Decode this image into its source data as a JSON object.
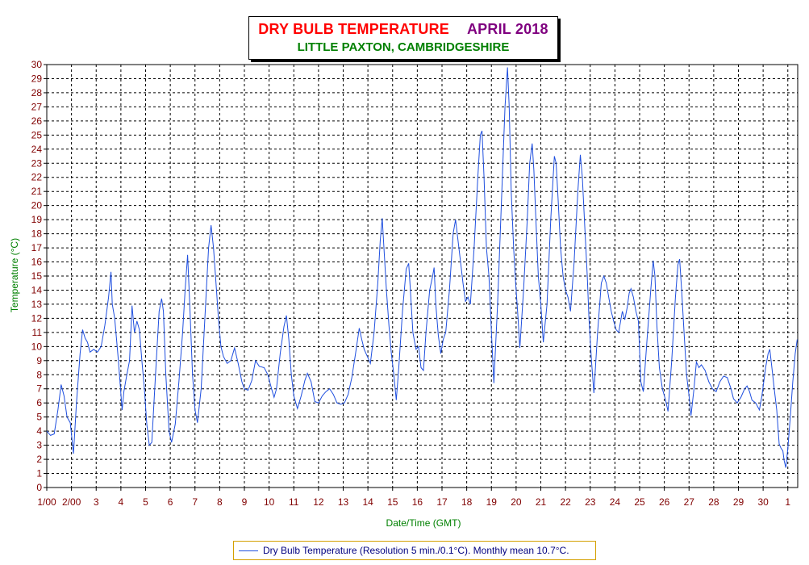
{
  "title": {
    "main": "DRY BULB TEMPERATURE",
    "period": "APRIL 2018",
    "location": "LITTLE PAXTON, CAMBRIDGESHIRE"
  },
  "legend": {
    "label": "Dry Bulb Temperature (Resolution 5 min./0.1°C). Monthly mean 10.7°C."
  },
  "colors": {
    "line": "#1f4fdf",
    "tick_labels": "#800000",
    "axis_titles": "#008000",
    "title_main": "#ff0000",
    "title_period": "#7f007f",
    "title_location": "#008000",
    "legend_border": "#d4a000"
  },
  "chart_data": {
    "type": "line",
    "xlabel": "Date/Time (GMT)",
    "ylabel": "Temperature (°C)",
    "ylim": [
      0,
      30
    ],
    "yticks": [
      0,
      1,
      2,
      3,
      4,
      5,
      6,
      7,
      8,
      9,
      10,
      11,
      12,
      13,
      14,
      15,
      16,
      17,
      18,
      19,
      20,
      21,
      22,
      23,
      24,
      25,
      26,
      27,
      28,
      29,
      30
    ],
    "xlim": [
      1,
      31.4
    ],
    "x_unit": "day of April 2018",
    "xticks": [
      {
        "x": 1,
        "label": "1/00"
      },
      {
        "x": 2,
        "label": "2/00"
      },
      {
        "x": 3,
        "label": "3"
      },
      {
        "x": 4,
        "label": "4"
      },
      {
        "x": 5,
        "label": "5"
      },
      {
        "x": 6,
        "label": "6"
      },
      {
        "x": 7,
        "label": "7"
      },
      {
        "x": 8,
        "label": "8"
      },
      {
        "x": 9,
        "label": "9"
      },
      {
        "x": 10,
        "label": "10"
      },
      {
        "x": 11,
        "label": "11"
      },
      {
        "x": 12,
        "label": "12"
      },
      {
        "x": 13,
        "label": "13"
      },
      {
        "x": 14,
        "label": "14"
      },
      {
        "x": 15,
        "label": "15"
      },
      {
        "x": 16,
        "label": "16"
      },
      {
        "x": 17,
        "label": "17"
      },
      {
        "x": 18,
        "label": "18"
      },
      {
        "x": 19,
        "label": "19"
      },
      {
        "x": 20,
        "label": "20"
      },
      {
        "x": 21,
        "label": "21"
      },
      {
        "x": 22,
        "label": "22"
      },
      {
        "x": 23,
        "label": "23"
      },
      {
        "x": 24,
        "label": "24"
      },
      {
        "x": 25,
        "label": "25"
      },
      {
        "x": 26,
        "label": "26"
      },
      {
        "x": 27,
        "label": "27"
      },
      {
        "x": 28,
        "label": "28"
      },
      {
        "x": 29,
        "label": "29"
      },
      {
        "x": 30,
        "label": "30"
      },
      {
        "x": 31,
        "label": "1"
      }
    ],
    "grid": true,
    "series": [
      {
        "name": "Dry Bulb Temperature (Resolution 5 min./0.1°C). Monthly mean 10.7°C.",
        "points": [
          [
            1.0,
            4.0
          ],
          [
            1.15,
            3.7
          ],
          [
            1.3,
            3.8
          ],
          [
            1.45,
            5.5
          ],
          [
            1.58,
            7.3
          ],
          [
            1.7,
            6.5
          ],
          [
            1.82,
            5.0
          ],
          [
            1.95,
            4.6
          ],
          [
            2.08,
            2.4
          ],
          [
            2.2,
            6.0
          ],
          [
            2.35,
            9.5
          ],
          [
            2.45,
            11.2
          ],
          [
            2.55,
            10.6
          ],
          [
            2.65,
            10.3
          ],
          [
            2.75,
            9.6
          ],
          [
            2.9,
            9.8
          ],
          [
            3.05,
            9.6
          ],
          [
            3.2,
            10.0
          ],
          [
            3.35,
            11.5
          ],
          [
            3.5,
            13.5
          ],
          [
            3.6,
            15.3
          ],
          [
            3.65,
            13.0
          ],
          [
            3.75,
            12.0
          ],
          [
            3.9,
            9.0
          ],
          [
            4.05,
            5.5
          ],
          [
            4.12,
            6.8
          ],
          [
            4.22,
            7.8
          ],
          [
            4.35,
            9.0
          ],
          [
            4.45,
            12.9
          ],
          [
            4.55,
            11.0
          ],
          [
            4.65,
            11.8
          ],
          [
            4.75,
            11.2
          ],
          [
            4.85,
            9.0
          ],
          [
            4.95,
            7.0
          ],
          [
            5.05,
            4.5
          ],
          [
            5.15,
            3.0
          ],
          [
            5.25,
            3.2
          ],
          [
            5.4,
            8.0
          ],
          [
            5.55,
            12.5
          ],
          [
            5.65,
            13.4
          ],
          [
            5.72,
            12.5
          ],
          [
            5.82,
            8.0
          ],
          [
            5.95,
            4.0
          ],
          [
            6.05,
            3.2
          ],
          [
            6.2,
            4.5
          ],
          [
            6.35,
            7.5
          ],
          [
            6.5,
            11.0
          ],
          [
            6.6,
            14.0
          ],
          [
            6.7,
            16.5
          ],
          [
            6.8,
            12.5
          ],
          [
            6.9,
            8.0
          ],
          [
            7.0,
            5.5
          ],
          [
            7.1,
            4.6
          ],
          [
            7.25,
            7.0
          ],
          [
            7.4,
            12.0
          ],
          [
            7.55,
            17.0
          ],
          [
            7.65,
            18.6
          ],
          [
            7.75,
            17.0
          ],
          [
            7.85,
            14.5
          ],
          [
            7.95,
            12.0
          ],
          [
            8.05,
            10.0
          ],
          [
            8.15,
            9.3
          ],
          [
            8.3,
            8.8
          ],
          [
            8.45,
            9.0
          ],
          [
            8.6,
            9.9
          ],
          [
            8.75,
            8.8
          ],
          [
            8.9,
            7.5
          ],
          [
            9.0,
            7.0
          ],
          [
            9.15,
            6.9
          ],
          [
            9.3,
            7.6
          ],
          [
            9.45,
            9.0
          ],
          [
            9.6,
            8.6
          ],
          [
            9.8,
            8.5
          ],
          [
            9.95,
            8.0
          ],
          [
            10.1,
            7.0
          ],
          [
            10.2,
            6.4
          ],
          [
            10.3,
            7.0
          ],
          [
            10.45,
            9.5
          ],
          [
            10.6,
            11.4
          ],
          [
            10.7,
            12.2
          ],
          [
            10.8,
            10.5
          ],
          [
            10.9,
            8.0
          ],
          [
            11.0,
            6.5
          ],
          [
            11.15,
            5.6
          ],
          [
            11.3,
            6.5
          ],
          [
            11.45,
            7.6
          ],
          [
            11.55,
            8.1
          ],
          [
            11.7,
            7.5
          ],
          [
            11.85,
            6.1
          ],
          [
            12.0,
            6.0
          ],
          [
            12.15,
            6.5
          ],
          [
            12.3,
            6.8
          ],
          [
            12.45,
            7.0
          ],
          [
            12.6,
            6.6
          ],
          [
            12.75,
            6.0
          ],
          [
            12.9,
            5.9
          ],
          [
            13.05,
            6.0
          ],
          [
            13.2,
            6.6
          ],
          [
            13.35,
            7.8
          ],
          [
            13.5,
            9.5
          ],
          [
            13.65,
            11.3
          ],
          [
            13.75,
            10.5
          ],
          [
            13.85,
            9.8
          ],
          [
            13.95,
            9.4
          ],
          [
            14.1,
            8.8
          ],
          [
            14.25,
            11.0
          ],
          [
            14.4,
            14.5
          ],
          [
            14.5,
            17.5
          ],
          [
            14.58,
            19.1
          ],
          [
            14.65,
            17.0
          ],
          [
            14.75,
            14.0
          ],
          [
            14.85,
            11.5
          ],
          [
            14.95,
            9.5
          ],
          [
            15.05,
            8.0
          ],
          [
            15.15,
            6.2
          ],
          [
            15.25,
            8.5
          ],
          [
            15.4,
            12.5
          ],
          [
            15.55,
            15.5
          ],
          [
            15.65,
            15.9
          ],
          [
            15.72,
            14.0
          ],
          [
            15.82,
            11.0
          ],
          [
            15.95,
            9.8
          ],
          [
            16.05,
            10.0
          ],
          [
            16.15,
            8.5
          ],
          [
            16.25,
            8.3
          ],
          [
            16.35,
            11.0
          ],
          [
            16.5,
            14.0
          ],
          [
            16.62,
            15.0
          ],
          [
            16.68,
            15.6
          ],
          [
            16.75,
            13.0
          ],
          [
            16.85,
            10.8
          ],
          [
            16.95,
            9.5
          ],
          [
            17.05,
            10.5
          ],
          [
            17.15,
            11.0
          ],
          [
            17.3,
            14.0
          ],
          [
            17.45,
            18.0
          ],
          [
            17.55,
            19.0
          ],
          [
            17.65,
            17.5
          ],
          [
            17.75,
            16.0
          ],
          [
            17.85,
            14.5
          ],
          [
            17.95,
            13.2
          ],
          [
            18.05,
            13.5
          ],
          [
            18.15,
            13.0
          ],
          [
            18.3,
            17.0
          ],
          [
            18.45,
            22.0
          ],
          [
            18.55,
            25.0
          ],
          [
            18.62,
            25.3
          ],
          [
            18.7,
            22.0
          ],
          [
            18.8,
            17.0
          ],
          [
            18.9,
            15.0
          ],
          [
            19.0,
            11.0
          ],
          [
            19.1,
            7.4
          ],
          [
            19.25,
            13.0
          ],
          [
            19.4,
            20.0
          ],
          [
            19.55,
            27.0
          ],
          [
            19.65,
            29.8
          ],
          [
            19.72,
            27.0
          ],
          [
            19.8,
            21.0
          ],
          [
            19.9,
            17.0
          ],
          [
            19.98,
            14.5
          ],
          [
            20.08,
            12.0
          ],
          [
            20.15,
            9.9
          ],
          [
            20.3,
            14.0
          ],
          [
            20.45,
            19.0
          ],
          [
            20.55,
            23.0
          ],
          [
            20.65,
            24.4
          ],
          [
            20.72,
            22.5
          ],
          [
            20.8,
            19.0
          ],
          [
            20.9,
            15.0
          ],
          [
            21.0,
            13.0
          ],
          [
            21.1,
            10.3
          ],
          [
            21.25,
            13.0
          ],
          [
            21.4,
            19.0
          ],
          [
            21.55,
            23.5
          ],
          [
            21.62,
            23.0
          ],
          [
            21.7,
            20.5
          ],
          [
            21.8,
            17.0
          ],
          [
            21.9,
            15.0
          ],
          [
            22.0,
            14.0
          ],
          [
            22.1,
            13.5
          ],
          [
            22.2,
            12.5
          ],
          [
            22.35,
            16.0
          ],
          [
            22.5,
            21.0
          ],
          [
            22.6,
            23.6
          ],
          [
            22.68,
            22.0
          ],
          [
            22.78,
            18.5
          ],
          [
            22.88,
            15.0
          ],
          [
            22.95,
            12.0
          ],
          [
            23.05,
            9.0
          ],
          [
            23.15,
            6.7
          ],
          [
            23.3,
            11.0
          ],
          [
            23.45,
            14.5
          ],
          [
            23.55,
            15.0
          ],
          [
            23.65,
            14.5
          ],
          [
            23.75,
            13.5
          ],
          [
            23.85,
            12.5
          ],
          [
            23.95,
            11.8
          ],
          [
            24.05,
            11.2
          ],
          [
            24.15,
            11.0
          ],
          [
            24.3,
            12.5
          ],
          [
            24.4,
            11.9
          ],
          [
            24.5,
            12.8
          ],
          [
            24.58,
            13.8
          ],
          [
            24.65,
            14.1
          ],
          [
            24.75,
            13.5
          ],
          [
            24.85,
            12.5
          ],
          [
            24.95,
            11.8
          ],
          [
            25.05,
            7.5
          ],
          [
            25.15,
            6.8
          ],
          [
            25.3,
            10.5
          ],
          [
            25.45,
            14.0
          ],
          [
            25.55,
            16.1
          ],
          [
            25.62,
            15.0
          ],
          [
            25.7,
            11.5
          ],
          [
            25.8,
            8.5
          ],
          [
            25.92,
            7.0
          ],
          [
            26.05,
            6.2
          ],
          [
            26.15,
            5.4
          ],
          [
            26.3,
            9.0
          ],
          [
            26.45,
            13.5
          ],
          [
            26.55,
            15.8
          ],
          [
            26.62,
            16.2
          ],
          [
            26.7,
            14.0
          ],
          [
            26.8,
            11.0
          ],
          [
            26.9,
            8.0
          ],
          [
            27.0,
            6.5
          ],
          [
            27.08,
            5.1
          ],
          [
            27.2,
            7.0
          ],
          [
            27.3,
            8.9
          ],
          [
            27.4,
            8.5
          ],
          [
            27.5,
            8.7
          ],
          [
            27.65,
            8.3
          ],
          [
            27.8,
            7.5
          ],
          [
            27.95,
            7.0
          ],
          [
            28.1,
            6.8
          ],
          [
            28.25,
            7.5
          ],
          [
            28.4,
            7.9
          ],
          [
            28.55,
            7.8
          ],
          [
            28.7,
            7.0
          ],
          [
            28.8,
            6.3
          ],
          [
            28.95,
            6.0
          ],
          [
            29.1,
            6.4
          ],
          [
            29.25,
            7.0
          ],
          [
            29.35,
            7.2
          ],
          [
            29.45,
            6.8
          ],
          [
            29.55,
            6.2
          ],
          [
            29.7,
            6.0
          ],
          [
            29.85,
            5.5
          ],
          [
            29.95,
            6.5
          ],
          [
            30.1,
            8.5
          ],
          [
            30.2,
            9.5
          ],
          [
            30.27,
            9.8
          ],
          [
            30.35,
            8.6
          ],
          [
            30.45,
            7.0
          ],
          [
            30.55,
            5.5
          ],
          [
            30.65,
            3.1
          ],
          [
            30.72,
            2.8
          ],
          [
            30.8,
            2.6
          ],
          [
            30.85,
            1.9
          ],
          [
            30.92,
            1.4
          ],
          [
            31.0,
            2.8
          ],
          [
            31.1,
            5.0
          ],
          [
            31.2,
            7.5
          ],
          [
            31.3,
            9.5
          ],
          [
            31.38,
            10.5
          ]
        ]
      }
    ]
  }
}
